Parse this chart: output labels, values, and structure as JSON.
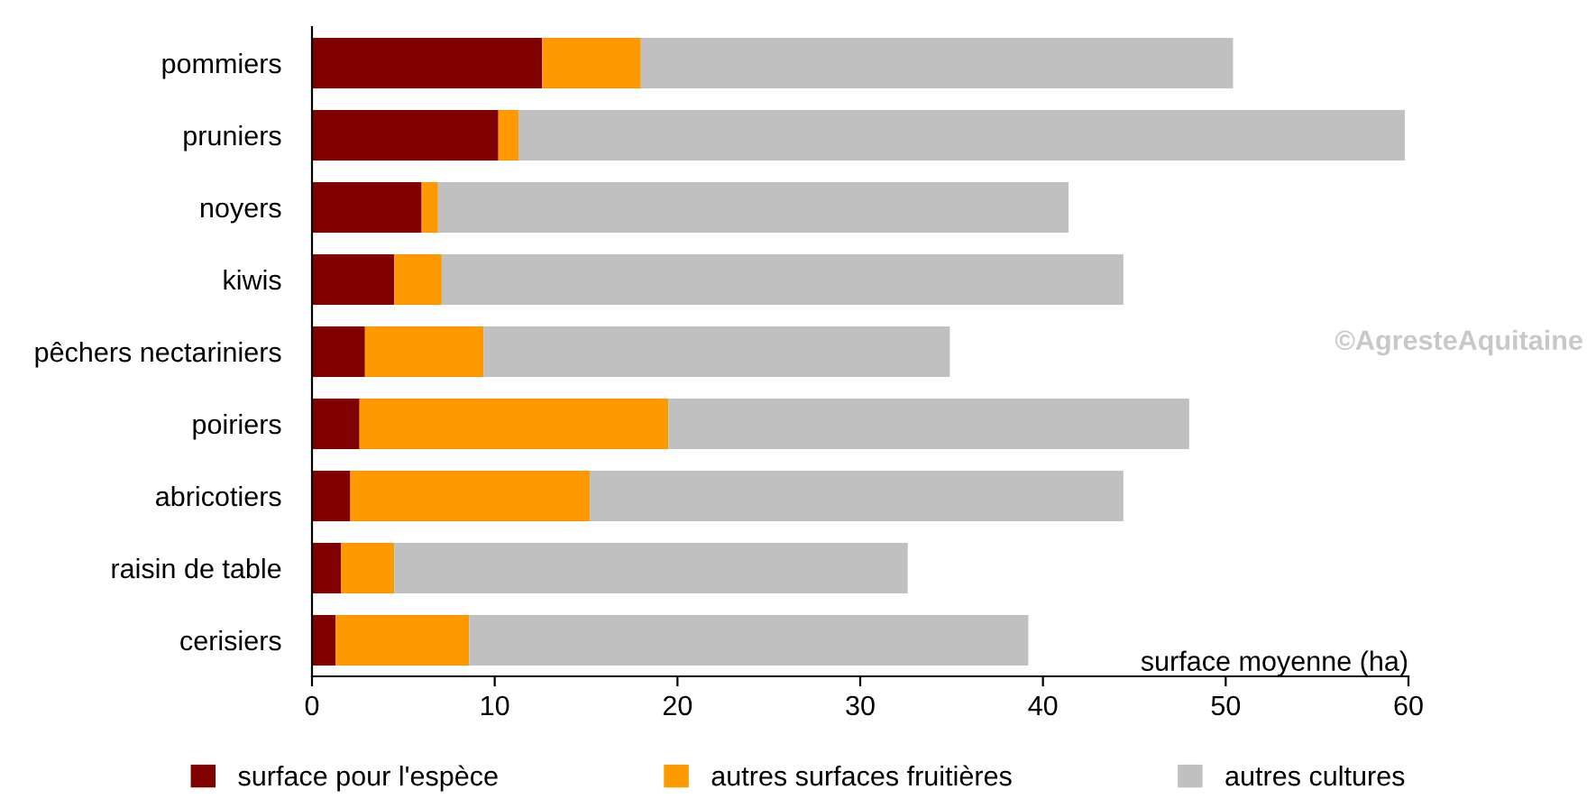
{
  "chart_data": {
    "type": "bar",
    "orientation": "horizontal",
    "stacked": true,
    "categories": [
      "pommiers",
      "pruniers",
      "noyers",
      "kiwis",
      "pêchers nectariniers",
      "poiriers",
      "abricotiers",
      "raisin de table",
      "cerisiers"
    ],
    "series": [
      {
        "name": "surface pour l'espèce",
        "color": "#800000",
        "values": [
          12.6,
          10.2,
          6.0,
          4.5,
          2.9,
          2.6,
          2.1,
          1.6,
          1.3
        ]
      },
      {
        "name": "autres surfaces fruitières",
        "color": "#ff9900",
        "values": [
          5.4,
          1.1,
          0.9,
          2.6,
          6.5,
          16.9,
          13.1,
          2.9,
          7.3
        ]
      },
      {
        "name": "autres cultures",
        "color": "#c0c0c0",
        "values": [
          32.4,
          48.5,
          34.5,
          37.3,
          25.5,
          28.5,
          29.2,
          28.1,
          30.6
        ]
      }
    ],
    "xlim": [
      0,
      60
    ],
    "xticks": [
      0,
      10,
      20,
      30,
      40,
      50,
      60
    ],
    "xlabel": "surface moyenne (ha)",
    "annotations": [
      "©AgresteAquitaine"
    ],
    "grid": false,
    "legend": "bottom"
  }
}
